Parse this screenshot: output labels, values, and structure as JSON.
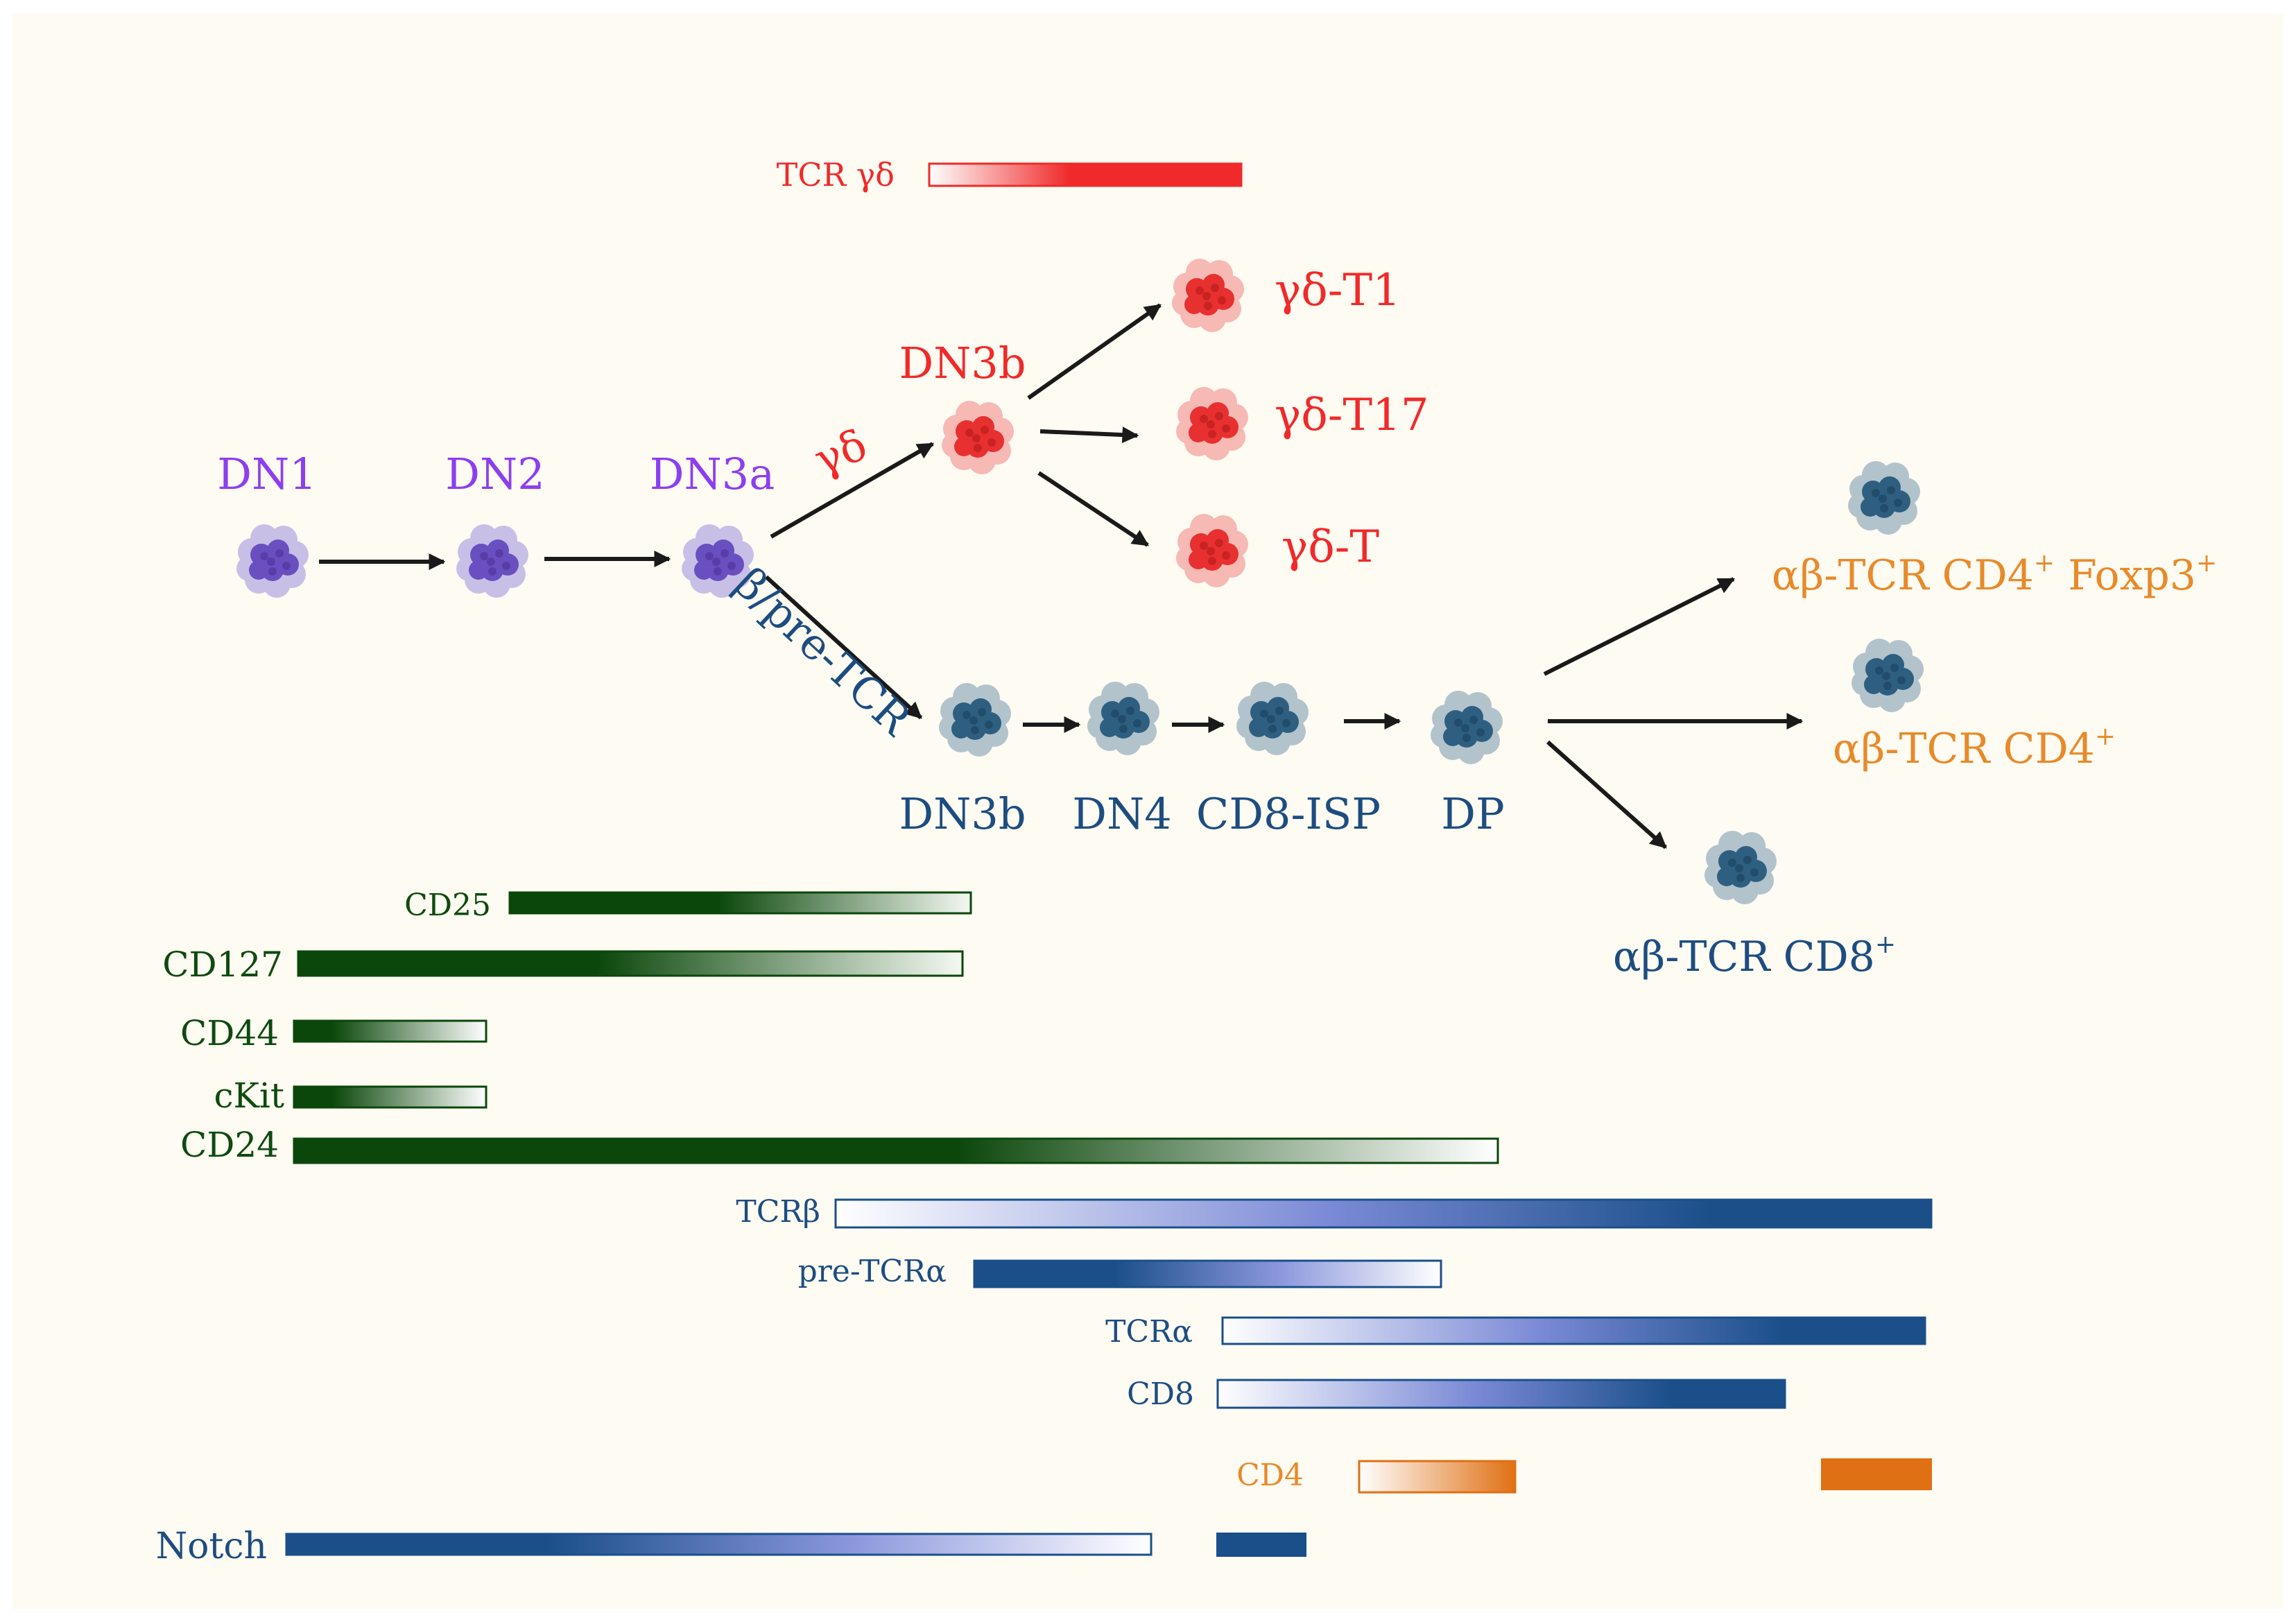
{
  "colors": {
    "purple": "#8d3ef0",
    "red": "#f02a2a",
    "navy": "#1d4d80",
    "orange": "#e88a2a",
    "dark_green": "#0e4a0e",
    "bar_navy": "#1a4f8a",
    "bar_blue_mid": "#7b8ad6",
    "bar_orange": "#e07014",
    "background": "#fdfbf2"
  },
  "stages": {
    "dn1": "DN1",
    "dn2": "DN2",
    "dn3a": "DN3a",
    "dn3b_gd": "DN3b",
    "dn3b_ab": "DN3b",
    "dn4": "DN4",
    "cd8_isp": "CD8-ISP",
    "dp": "DP"
  },
  "branch_labels": {
    "gamma_delta": "γδ",
    "beta_pre_tcr": "β/pre-TCR"
  },
  "gd_outcomes": {
    "t1": "γδ-T1",
    "t17": "γδ-T17",
    "t": "γδ-T"
  },
  "ab_outcomes": {
    "cd4_foxp3": {
      "main": "αβ-TCR CD4",
      "sup1": "+",
      "mid": " Foxp3",
      "sup2": "+"
    },
    "cd4": {
      "main": "αβ-TCR CD4",
      "sup": "+"
    },
    "cd8": {
      "main": "αβ-TCR CD8",
      "sup": "+"
    }
  },
  "markers": {
    "tcr_gd": "TCR γδ",
    "cd25": "CD25",
    "cd127": "CD127",
    "cd44": "CD44",
    "ckit": "cKit",
    "cd24": "CD24",
    "tcrb": "TCRβ",
    "pretcra": "pre-TCRα",
    "tcra": "TCRα",
    "cd8": "CD8",
    "cd4": "CD4",
    "notch": "Notch"
  }
}
